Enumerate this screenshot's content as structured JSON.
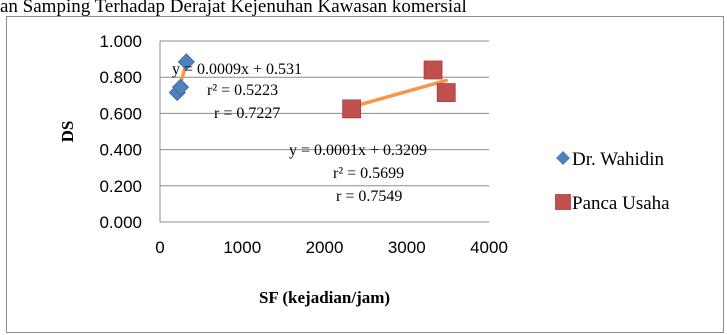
{
  "title_fragment": "an Samping Terhadap Derajat Kejenuhan Kawasan komersial",
  "chart_data": {
    "type": "scatter",
    "xlabel": "SF (kejadian/jam)",
    "ylabel": "DS",
    "xlim": [
      0,
      4000
    ],
    "ylim": [
      0,
      1.0
    ],
    "x_ticks": [
      "0",
      "1000",
      "2000",
      "3000",
      "4000"
    ],
    "y_ticks": [
      "0.000",
      "0.200",
      "0.400",
      "0.600",
      "0.800",
      "1.000"
    ],
    "grid": "horizontal",
    "legend_position": "right",
    "series": [
      {
        "name": "Dr. Wahidin",
        "marker": "diamond",
        "color": "#4f81bd",
        "points": [
          [
            210,
            0.715
          ],
          [
            250,
            0.745
          ],
          [
            320,
            0.885
          ]
        ],
        "trendline": {
          "x_range": [
            200,
            340
          ],
          "slope": 0.0009,
          "intercept": 0.531,
          "color": "#f79646",
          "equation": "y = 0.0009x + 0.531",
          "r_squared": "r² = 0.5223",
          "r": "r = 0.7227"
        }
      },
      {
        "name": "Panca Usaha",
        "marker": "square",
        "color": "#c0504d",
        "points": [
          [
            2330,
            0.625
          ],
          [
            3320,
            0.84
          ],
          [
            3480,
            0.715
          ]
        ],
        "trendline": {
          "x_range": [
            2330,
            3480
          ],
          "slope": 0.0001,
          "intercept": 0.3209,
          "color": "#f79646",
          "equation": "y = 0.0001x + 0.3209",
          "r_squared": "r² = 0.5699",
          "r": "r = 0.7549"
        }
      }
    ]
  }
}
